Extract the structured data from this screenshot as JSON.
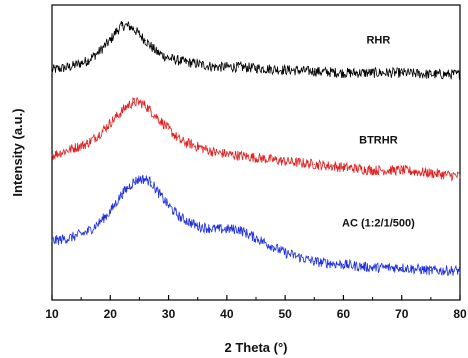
{
  "chart_data": {
    "type": "line",
    "xlabel": "2 Theta (°)",
    "ylabel": "Intensity (a.u.)",
    "xlim": [
      10,
      80
    ],
    "xticks": [
      "10",
      "20",
      "30",
      "40",
      "50",
      "60",
      "70",
      "80"
    ],
    "yticks_shown": false,
    "grid": false,
    "legend": "inline labels",
    "series": [
      {
        "name": "RHR",
        "color": "#000000",
        "x": [
          10,
          13,
          16,
          18,
          20,
          21,
          22,
          23,
          24,
          25,
          26,
          27,
          28,
          30,
          32,
          35,
          38,
          42,
          46,
          50,
          55,
          60,
          65,
          70,
          75,
          80
        ],
        "y": [
          0.78,
          0.79,
          0.81,
          0.84,
          0.88,
          0.91,
          0.93,
          0.93,
          0.92,
          0.9,
          0.88,
          0.86,
          0.84,
          0.82,
          0.81,
          0.8,
          0.79,
          0.79,
          0.785,
          0.78,
          0.775,
          0.77,
          0.77,
          0.77,
          0.765,
          0.765
        ]
      },
      {
        "name": "BTRHR",
        "color": "#e02020",
        "x": [
          10,
          13,
          16,
          18,
          20,
          22,
          23,
          24,
          25,
          26,
          27,
          28,
          30,
          32,
          35,
          38,
          42,
          46,
          50,
          55,
          60,
          65,
          70,
          75,
          80
        ],
        "y": [
          0.49,
          0.51,
          0.53,
          0.56,
          0.6,
          0.64,
          0.66,
          0.67,
          0.67,
          0.66,
          0.64,
          0.62,
          0.58,
          0.54,
          0.52,
          0.5,
          0.49,
          0.48,
          0.47,
          0.46,
          0.45,
          0.44,
          0.44,
          0.43,
          0.42
        ]
      },
      {
        "name": "AC (1:2/1/500)",
        "color": "#2030e0",
        "x": [
          10,
          13,
          16,
          18,
          20,
          22,
          24,
          25,
          26,
          27,
          28,
          30,
          32,
          35,
          38,
          40,
          42,
          44,
          46,
          48,
          50,
          55,
          60,
          65,
          70,
          75,
          80
        ],
        "y": [
          0.2,
          0.21,
          0.23,
          0.26,
          0.3,
          0.36,
          0.4,
          0.41,
          0.41,
          0.4,
          0.37,
          0.32,
          0.28,
          0.25,
          0.24,
          0.24,
          0.24,
          0.22,
          0.2,
          0.18,
          0.16,
          0.13,
          0.12,
          0.11,
          0.11,
          0.1,
          0.1
        ]
      }
    ]
  }
}
